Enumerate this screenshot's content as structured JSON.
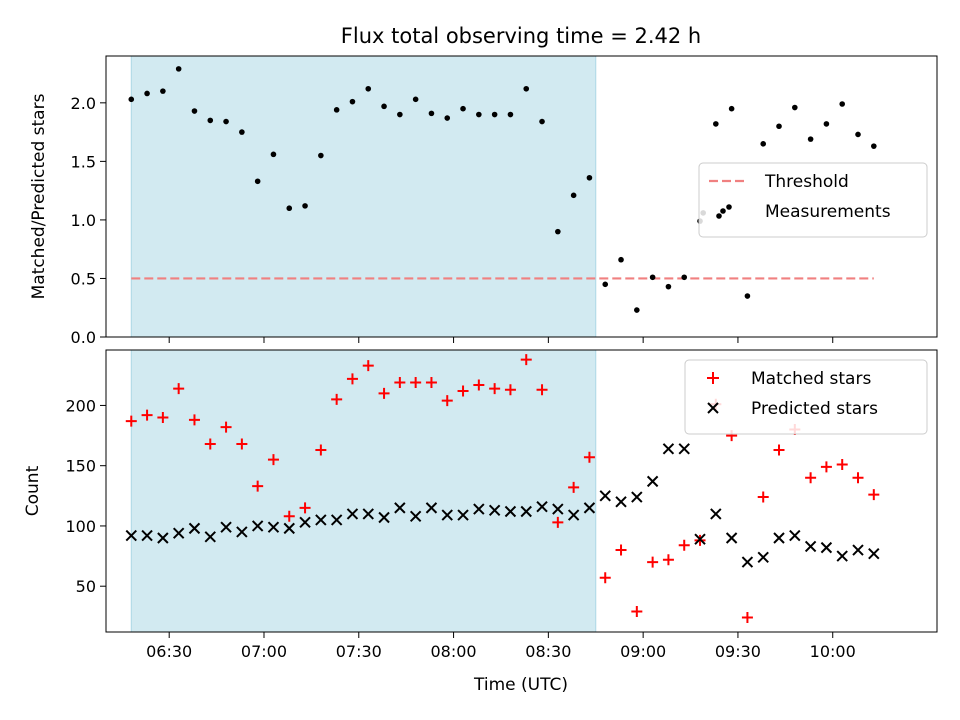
{
  "figure": {
    "title": "Flux total observing time = 2.42 h",
    "xlabel": "Time (UTC)"
  },
  "chart_data": [
    {
      "type": "scatter",
      "panel": "top",
      "ylabel": "Matched/Predicted stars",
      "xlim": [
        "06:10",
        "10:33"
      ],
      "ylim": [
        0.0,
        2.4
      ],
      "yticks": [
        0.0,
        0.5,
        1.0,
        1.5,
        2.0
      ],
      "yticklabels": [
        "0.0",
        "0.5",
        "1.0",
        "1.5",
        "2.0"
      ],
      "xticks": [
        "06:30",
        "07:00",
        "07:30",
        "08:00",
        "08:30",
        "09:00",
        "09:30",
        "10:00"
      ],
      "shaded_span": {
        "from": "06:18",
        "to": "08:45",
        "color": "#add8e6"
      },
      "legend_position": "center-right",
      "threshold": {
        "name": "Threshold",
        "value": 0.5,
        "from": "06:18",
        "to": "10:13",
        "color": "#f08080"
      },
      "series": [
        {
          "name": "Measurements",
          "color": "#000000",
          "points": [
            [
              "06:18",
              2.03
            ],
            [
              "06:23",
              2.08
            ],
            [
              "06:28",
              2.1
            ],
            [
              "06:33",
              2.29
            ],
            [
              "06:38",
              1.93
            ],
            [
              "06:43",
              1.85
            ],
            [
              "06:48",
              1.84
            ],
            [
              "06:53",
              1.75
            ],
            [
              "06:58",
              1.33
            ],
            [
              "07:03",
              1.56
            ],
            [
              "07:08",
              1.1
            ],
            [
              "07:13",
              1.12
            ],
            [
              "07:18",
              1.55
            ],
            [
              "07:23",
              1.94
            ],
            [
              "07:28",
              2.01
            ],
            [
              "07:33",
              2.12
            ],
            [
              "07:38",
              1.97
            ],
            [
              "07:43",
              1.9
            ],
            [
              "07:48",
              2.03
            ],
            [
              "07:53",
              1.91
            ],
            [
              "07:58",
              1.87
            ],
            [
              "08:03",
              1.95
            ],
            [
              "08:08",
              1.9
            ],
            [
              "08:13",
              1.9
            ],
            [
              "08:18",
              1.9
            ],
            [
              "08:23",
              2.12
            ],
            [
              "08:28",
              1.84
            ],
            [
              "08:33",
              0.9
            ],
            [
              "08:38",
              1.21
            ],
            [
              "08:43",
              1.36
            ],
            [
              "08:48",
              0.45
            ],
            [
              "08:53",
              0.66
            ],
            [
              "08:58",
              0.23
            ],
            [
              "09:03",
              0.51
            ],
            [
              "09:08",
              0.43
            ],
            [
              "09:13",
              0.51
            ],
            [
              "09:18",
              0.99
            ],
            [
              "09:19",
              1.06
            ],
            [
              "09:23",
              1.82
            ],
            [
              "09:28",
              1.95
            ],
            [
              "09:33",
              0.35
            ],
            [
              "09:38",
              1.65
            ],
            [
              "09:43",
              1.8
            ],
            [
              "09:48",
              1.96
            ],
            [
              "09:53",
              1.69
            ],
            [
              "09:58",
              1.82
            ],
            [
              "10:03",
              1.99
            ],
            [
              "10:08",
              1.73
            ],
            [
              "10:13",
              1.63
            ]
          ]
        }
      ]
    },
    {
      "type": "scatter",
      "panel": "bottom",
      "ylabel": "Count",
      "xlim": [
        "06:10",
        "10:33"
      ],
      "ylim": [
        12,
        246
      ],
      "yticks": [
        50,
        100,
        150,
        200
      ],
      "yticklabels": [
        "50",
        "100",
        "150",
        "200"
      ],
      "xticks": [
        "06:30",
        "07:00",
        "07:30",
        "08:00",
        "08:30",
        "09:00",
        "09:30",
        "10:00"
      ],
      "xticklabels": [
        "06:30",
        "07:00",
        "07:30",
        "08:00",
        "08:30",
        "09:00",
        "09:30",
        "10:00"
      ],
      "shaded_span": {
        "from": "06:18",
        "to": "08:45",
        "color": "#add8e6"
      },
      "legend_position": "top-right",
      "series": [
        {
          "name": "Matched stars",
          "marker": "+",
          "color": "#ff0000",
          "points": [
            [
              "06:18",
              187
            ],
            [
              "06:23",
              192
            ],
            [
              "06:28",
              190
            ],
            [
              "06:33",
              214
            ],
            [
              "06:38",
              188
            ],
            [
              "06:43",
              168
            ],
            [
              "06:48",
              182
            ],
            [
              "06:53",
              168
            ],
            [
              "06:58",
              133
            ],
            [
              "07:03",
              155
            ],
            [
              "07:08",
              108
            ],
            [
              "07:13",
              115
            ],
            [
              "07:18",
              163
            ],
            [
              "07:23",
              205
            ],
            [
              "07:28",
              222
            ],
            [
              "07:33",
              233
            ],
            [
              "07:38",
              210
            ],
            [
              "07:43",
              219
            ],
            [
              "07:48",
              219
            ],
            [
              "07:53",
              219
            ],
            [
              "07:58",
              204
            ],
            [
              "08:03",
              212
            ],
            [
              "08:08",
              217
            ],
            [
              "08:13",
              214
            ],
            [
              "08:18",
              213
            ],
            [
              "08:23",
              238
            ],
            [
              "08:28",
              213
            ],
            [
              "08:33",
              103
            ],
            [
              "08:38",
              132
            ],
            [
              "08:43",
              157
            ],
            [
              "08:48",
              57
            ],
            [
              "08:53",
              80
            ],
            [
              "08:58",
              29
            ],
            [
              "09:03",
              70
            ],
            [
              "09:08",
              72
            ],
            [
              "09:13",
              84
            ],
            [
              "09:18",
              88
            ],
            [
              "09:23",
              201
            ],
            [
              "09:28",
              175
            ],
            [
              "09:33",
              24
            ],
            [
              "09:38",
              124
            ],
            [
              "09:43",
              163
            ],
            [
              "09:48",
              180
            ],
            [
              "09:53",
              140
            ],
            [
              "09:58",
              149
            ],
            [
              "10:03",
              151
            ],
            [
              "10:08",
              140
            ],
            [
              "10:13",
              126
            ]
          ]
        },
        {
          "name": "Predicted stars",
          "marker": "x",
          "color": "#000000",
          "points": [
            [
              "06:18",
              92
            ],
            [
              "06:23",
              92
            ],
            [
              "06:28",
              90
            ],
            [
              "06:33",
              94
            ],
            [
              "06:38",
              98
            ],
            [
              "06:43",
              91
            ],
            [
              "06:48",
              99
            ],
            [
              "06:53",
              95
            ],
            [
              "06:58",
              100
            ],
            [
              "07:03",
              99
            ],
            [
              "07:08",
              98
            ],
            [
              "07:13",
              103
            ],
            [
              "07:18",
              105
            ],
            [
              "07:23",
              105
            ],
            [
              "07:28",
              110
            ],
            [
              "07:33",
              110
            ],
            [
              "07:38",
              107
            ],
            [
              "07:43",
              115
            ],
            [
              "07:48",
              108
            ],
            [
              "07:53",
              115
            ],
            [
              "07:58",
              109
            ],
            [
              "08:03",
              109
            ],
            [
              "08:08",
              114
            ],
            [
              "08:13",
              113
            ],
            [
              "08:18",
              112
            ],
            [
              "08:23",
              112
            ],
            [
              "08:28",
              116
            ],
            [
              "08:33",
              114
            ],
            [
              "08:38",
              109
            ],
            [
              "08:43",
              115
            ],
            [
              "08:48",
              125
            ],
            [
              "08:53",
              120
            ],
            [
              "08:58",
              124
            ],
            [
              "09:03",
              137
            ],
            [
              "09:08",
              164
            ],
            [
              "09:13",
              164
            ],
            [
              "09:18",
              89
            ],
            [
              "09:23",
              110
            ],
            [
              "09:28",
              90
            ],
            [
              "09:33",
              70
            ],
            [
              "09:38",
              74
            ],
            [
              "09:43",
              90
            ],
            [
              "09:48",
              92
            ],
            [
              "09:53",
              83
            ],
            [
              "09:58",
              82
            ],
            [
              "10:03",
              75
            ],
            [
              "10:08",
              80
            ],
            [
              "10:13",
              77
            ]
          ]
        }
      ]
    }
  ]
}
